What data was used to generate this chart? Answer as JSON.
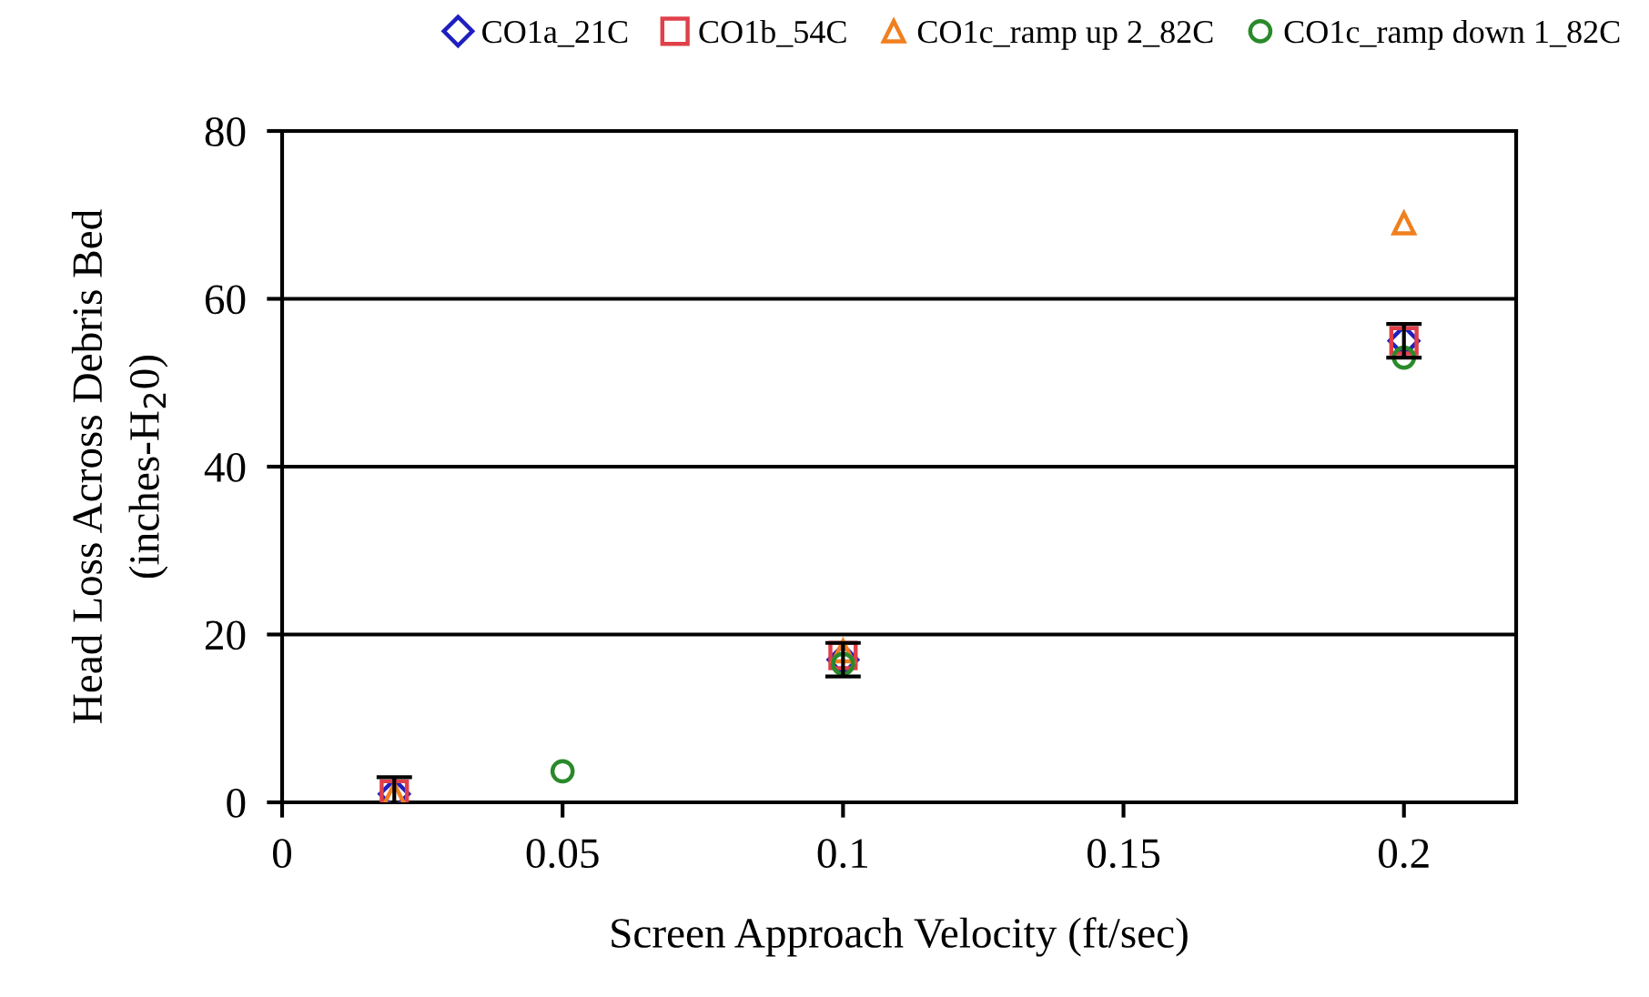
{
  "chart_data": {
    "type": "scatter",
    "xlabel": "Screen Approach Velocity (ft/sec)",
    "ylabel": "Head Loss Across Debris Bed\n(inches-H$_{2}$0)",
    "xlim": [
      0,
      0.22
    ],
    "xticks": [
      0,
      0.05,
      0.1,
      0.15,
      0.2
    ],
    "ylim": [
      0,
      80
    ],
    "yticks": [
      0,
      20,
      40,
      60,
      80
    ],
    "grid": "y",
    "legend": "top",
    "series": [
      {
        "name": "CO1a_21C",
        "color": "#1f1fbf",
        "marker": "diamond",
        "x": [
          0.02,
          0.1,
          0.2
        ],
        "values": [
          1,
          17,
          55
        ],
        "errors": [
          2,
          2,
          2
        ]
      },
      {
        "name": "CO1b_54C",
        "color": "#e0404a",
        "marker": "square",
        "x": [
          0.02,
          0.1,
          0.2
        ],
        "values": [
          1,
          17.5,
          55
        ]
      },
      {
        "name": "CO1c_ramp up 2_82C",
        "color": "#f07f1f",
        "marker": "triangle",
        "x": [
          0.02,
          0.1,
          0.2
        ],
        "values": [
          1,
          18,
          69
        ]
      },
      {
        "name": "CO1c_ramp down 1_82C",
        "color": "#2a8a2a",
        "marker": "circle",
        "x": [
          0.05,
          0.1,
          0.2
        ],
        "values": [
          3.7,
          16.5,
          53
        ]
      }
    ]
  }
}
